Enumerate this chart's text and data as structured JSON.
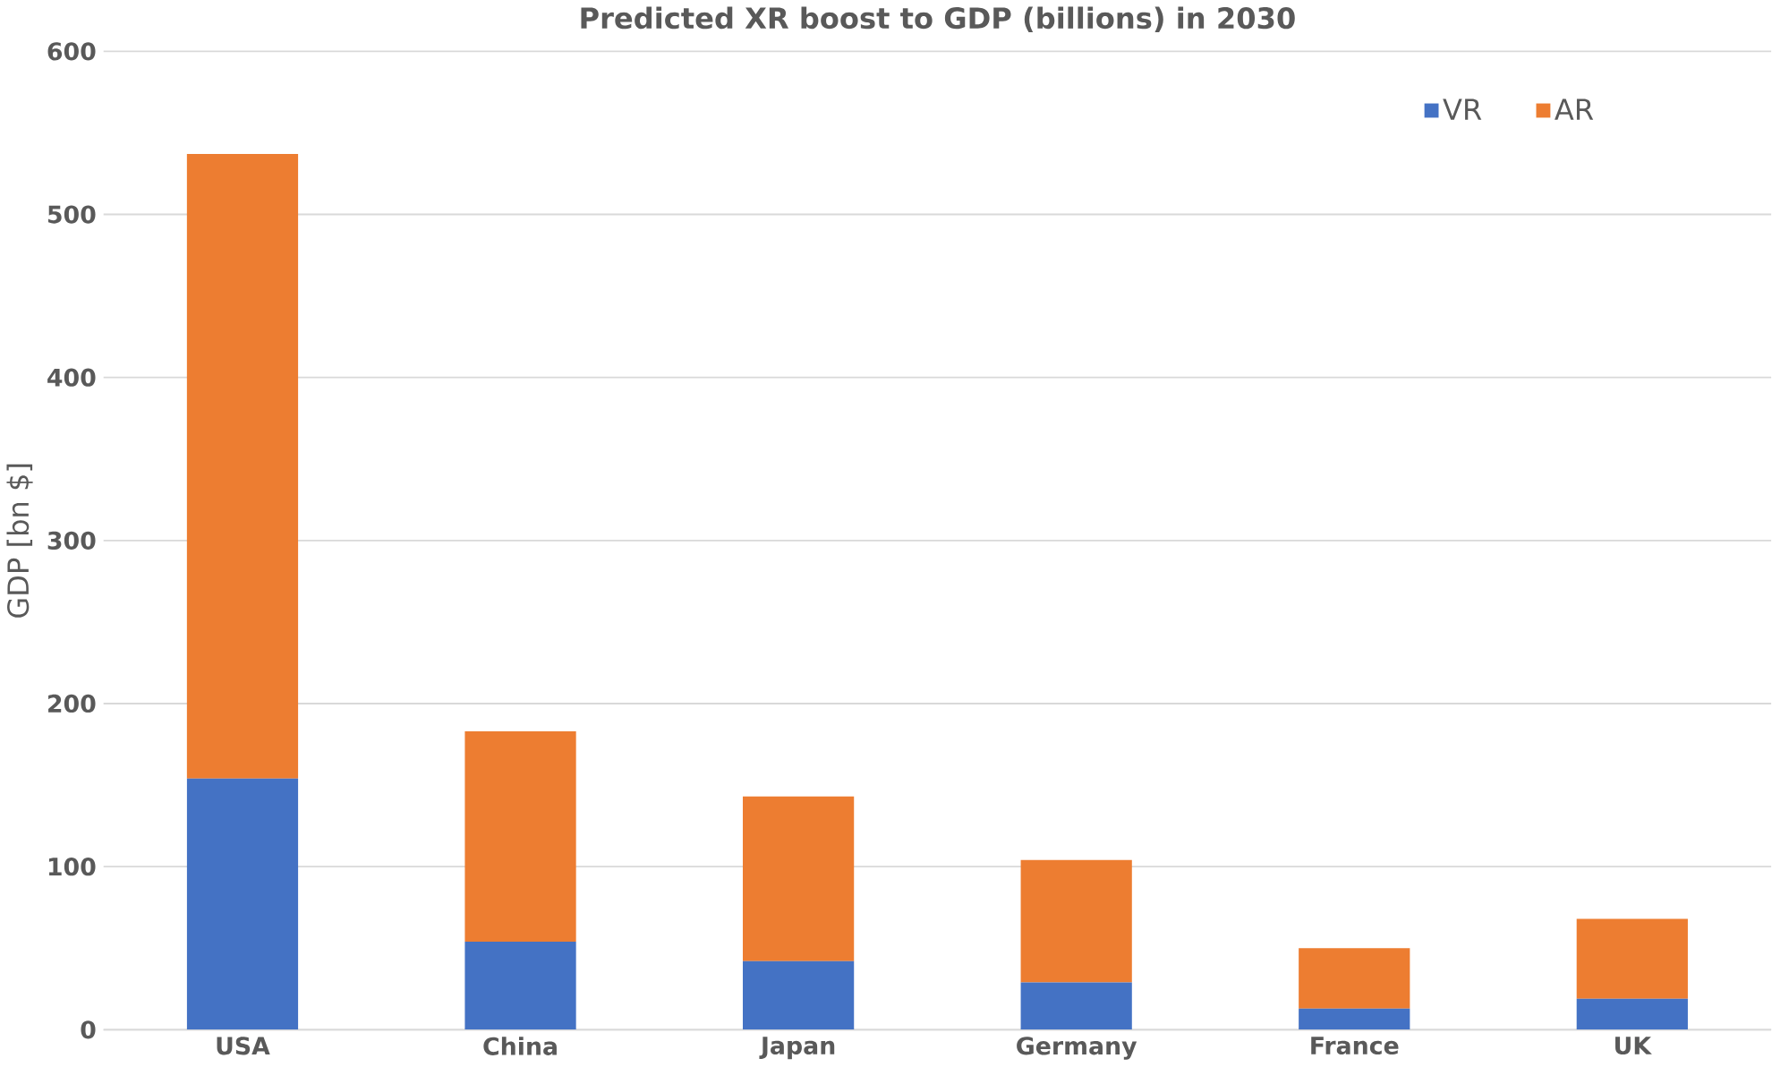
{
  "chart_data": {
    "type": "bar",
    "stacked": true,
    "title": "Predicted XR boost to GDP (billions) in 2030",
    "ylabel": "GDP [bn $]",
    "categories": [
      "USA",
      "China",
      "Japan",
      "Germany",
      "France",
      "UK"
    ],
    "series": [
      {
        "name": "VR",
        "color": "#4472c4",
        "values": [
          154,
          54,
          42,
          29,
          13,
          19
        ]
      },
      {
        "name": "AR",
        "color": "#ed7d31",
        "values": [
          383,
          129,
          101,
          75,
          37,
          49
        ]
      }
    ],
    "ylim": [
      0,
      600
    ],
    "yticks": [
      0,
      100,
      200,
      300,
      400,
      500,
      600
    ],
    "grid": "y",
    "legend": "top right"
  }
}
